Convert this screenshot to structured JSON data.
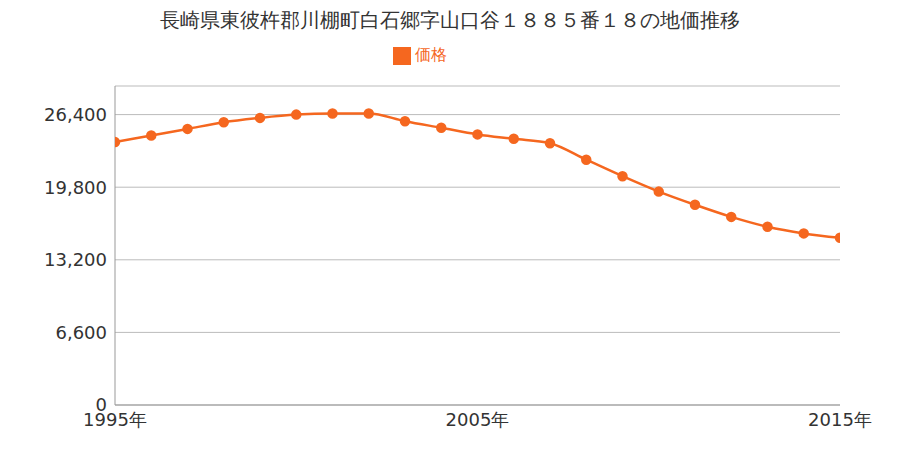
{
  "chart_data": {
    "type": "line",
    "title": "長崎県東彼杵郡川棚町白石郷字山口谷１８８５番１８の地価推移",
    "x": [
      1995,
      1996,
      1997,
      1998,
      1999,
      2000,
      2001,
      2002,
      2003,
      2004,
      2005,
      2006,
      2007,
      2008,
      2009,
      2010,
      2011,
      2012,
      2013,
      2014,
      2015
    ],
    "series": [
      {
        "name": "価格",
        "color": "#f5671f",
        "marker": "circle",
        "values": [
          23900,
          24500,
          25100,
          25700,
          26100,
          26400,
          26500,
          26500,
          25800,
          25200,
          24600,
          24200,
          23800,
          22300,
          20800,
          19400,
          18200,
          17100,
          16200,
          15600,
          15200
        ]
      }
    ],
    "xlim": [
      1995,
      2015
    ],
    "xticks": [
      {
        "value": 1995,
        "label": "1995年"
      },
      {
        "value": 2005,
        "label": "2005年"
      },
      {
        "value": 2015,
        "label": "2015年"
      }
    ],
    "ylim": [
      0,
      29000
    ],
    "yticks": [
      0,
      {
        "value": 6600,
        "label": "6,600"
      },
      {
        "value": 13200,
        "label": "13,200"
      },
      {
        "value": 19800,
        "label": "19,800"
      },
      {
        "value": 26400,
        "label": "26,400"
      }
    ],
    "grid": true,
    "legend": "top"
  }
}
